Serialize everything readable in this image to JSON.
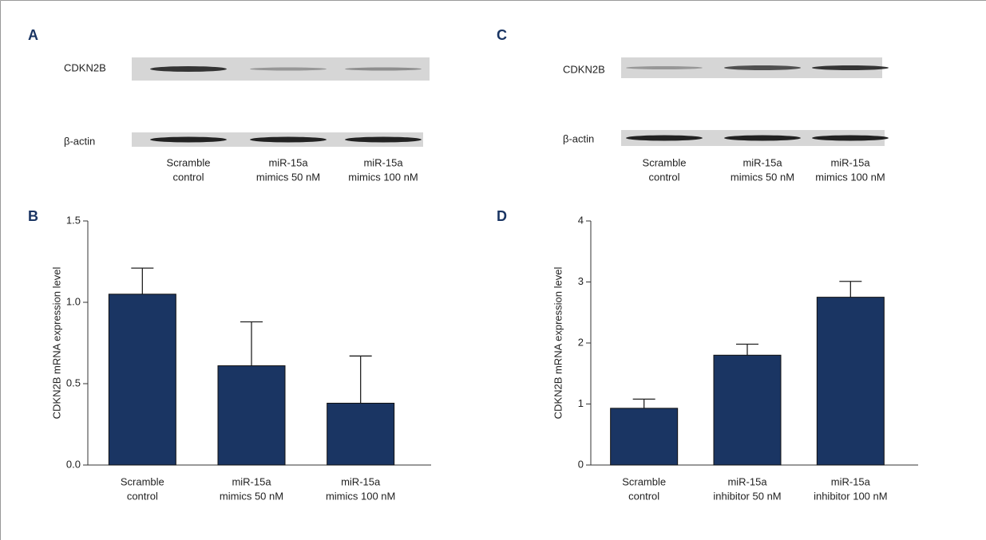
{
  "blots": [
    {
      "panel_label": "A",
      "rows": [
        "CDKN2B",
        "β-actin"
      ],
      "lanes": [
        [
          "Scramble",
          "control"
        ],
        [
          "miR-15a",
          "mimics 50 nM"
        ],
        [
          "miR-15a",
          "mimics 100 nM"
        ]
      ]
    },
    {
      "panel_label": "C",
      "rows": [
        "CDKN2B",
        "β-actin"
      ],
      "lanes": [
        [
          "Scramble",
          "control"
        ],
        [
          "miR-15a",
          "mimics 50 nM"
        ],
        [
          "miR-15a",
          "mimics 100 nM"
        ]
      ]
    }
  ],
  "chart_data": [
    {
      "type": "bar",
      "panel_label": "B",
      "y_label": "CDKN2B mRNA expression level",
      "categories": [
        [
          "Scramble",
          "control"
        ],
        [
          "miR-15a",
          "mimics 50 nM"
        ],
        [
          "miR-15a",
          "mimics 100 nM"
        ]
      ],
      "values": [
        1.05,
        0.61,
        0.38
      ],
      "errors": [
        0.16,
        0.27,
        0.29
      ],
      "color": "#1a3563",
      "ylim": [
        0,
        1.5
      ],
      "yticks": [
        {
          "value": 0,
          "label": "0.0"
        },
        0.5,
        {
          "value": 1,
          "label": "1.0"
        },
        1.5
      ]
    },
    {
      "type": "bar",
      "panel_label": "D",
      "y_label": "CDKN2B mRNA expression level",
      "categories": [
        [
          "Scramble",
          "control"
        ],
        [
          "miR-15a",
          "inhibitor 50 nM"
        ],
        [
          "miR-15a",
          "inhibitor 100 nM"
        ]
      ],
      "values": [
        0.93,
        1.8,
        2.75
      ],
      "errors": [
        0.15,
        0.18,
        0.26
      ],
      "color": "#1a3563",
      "ylim": [
        0,
        4
      ],
      "yticks": [
        0,
        1,
        2,
        3,
        4
      ]
    }
  ]
}
